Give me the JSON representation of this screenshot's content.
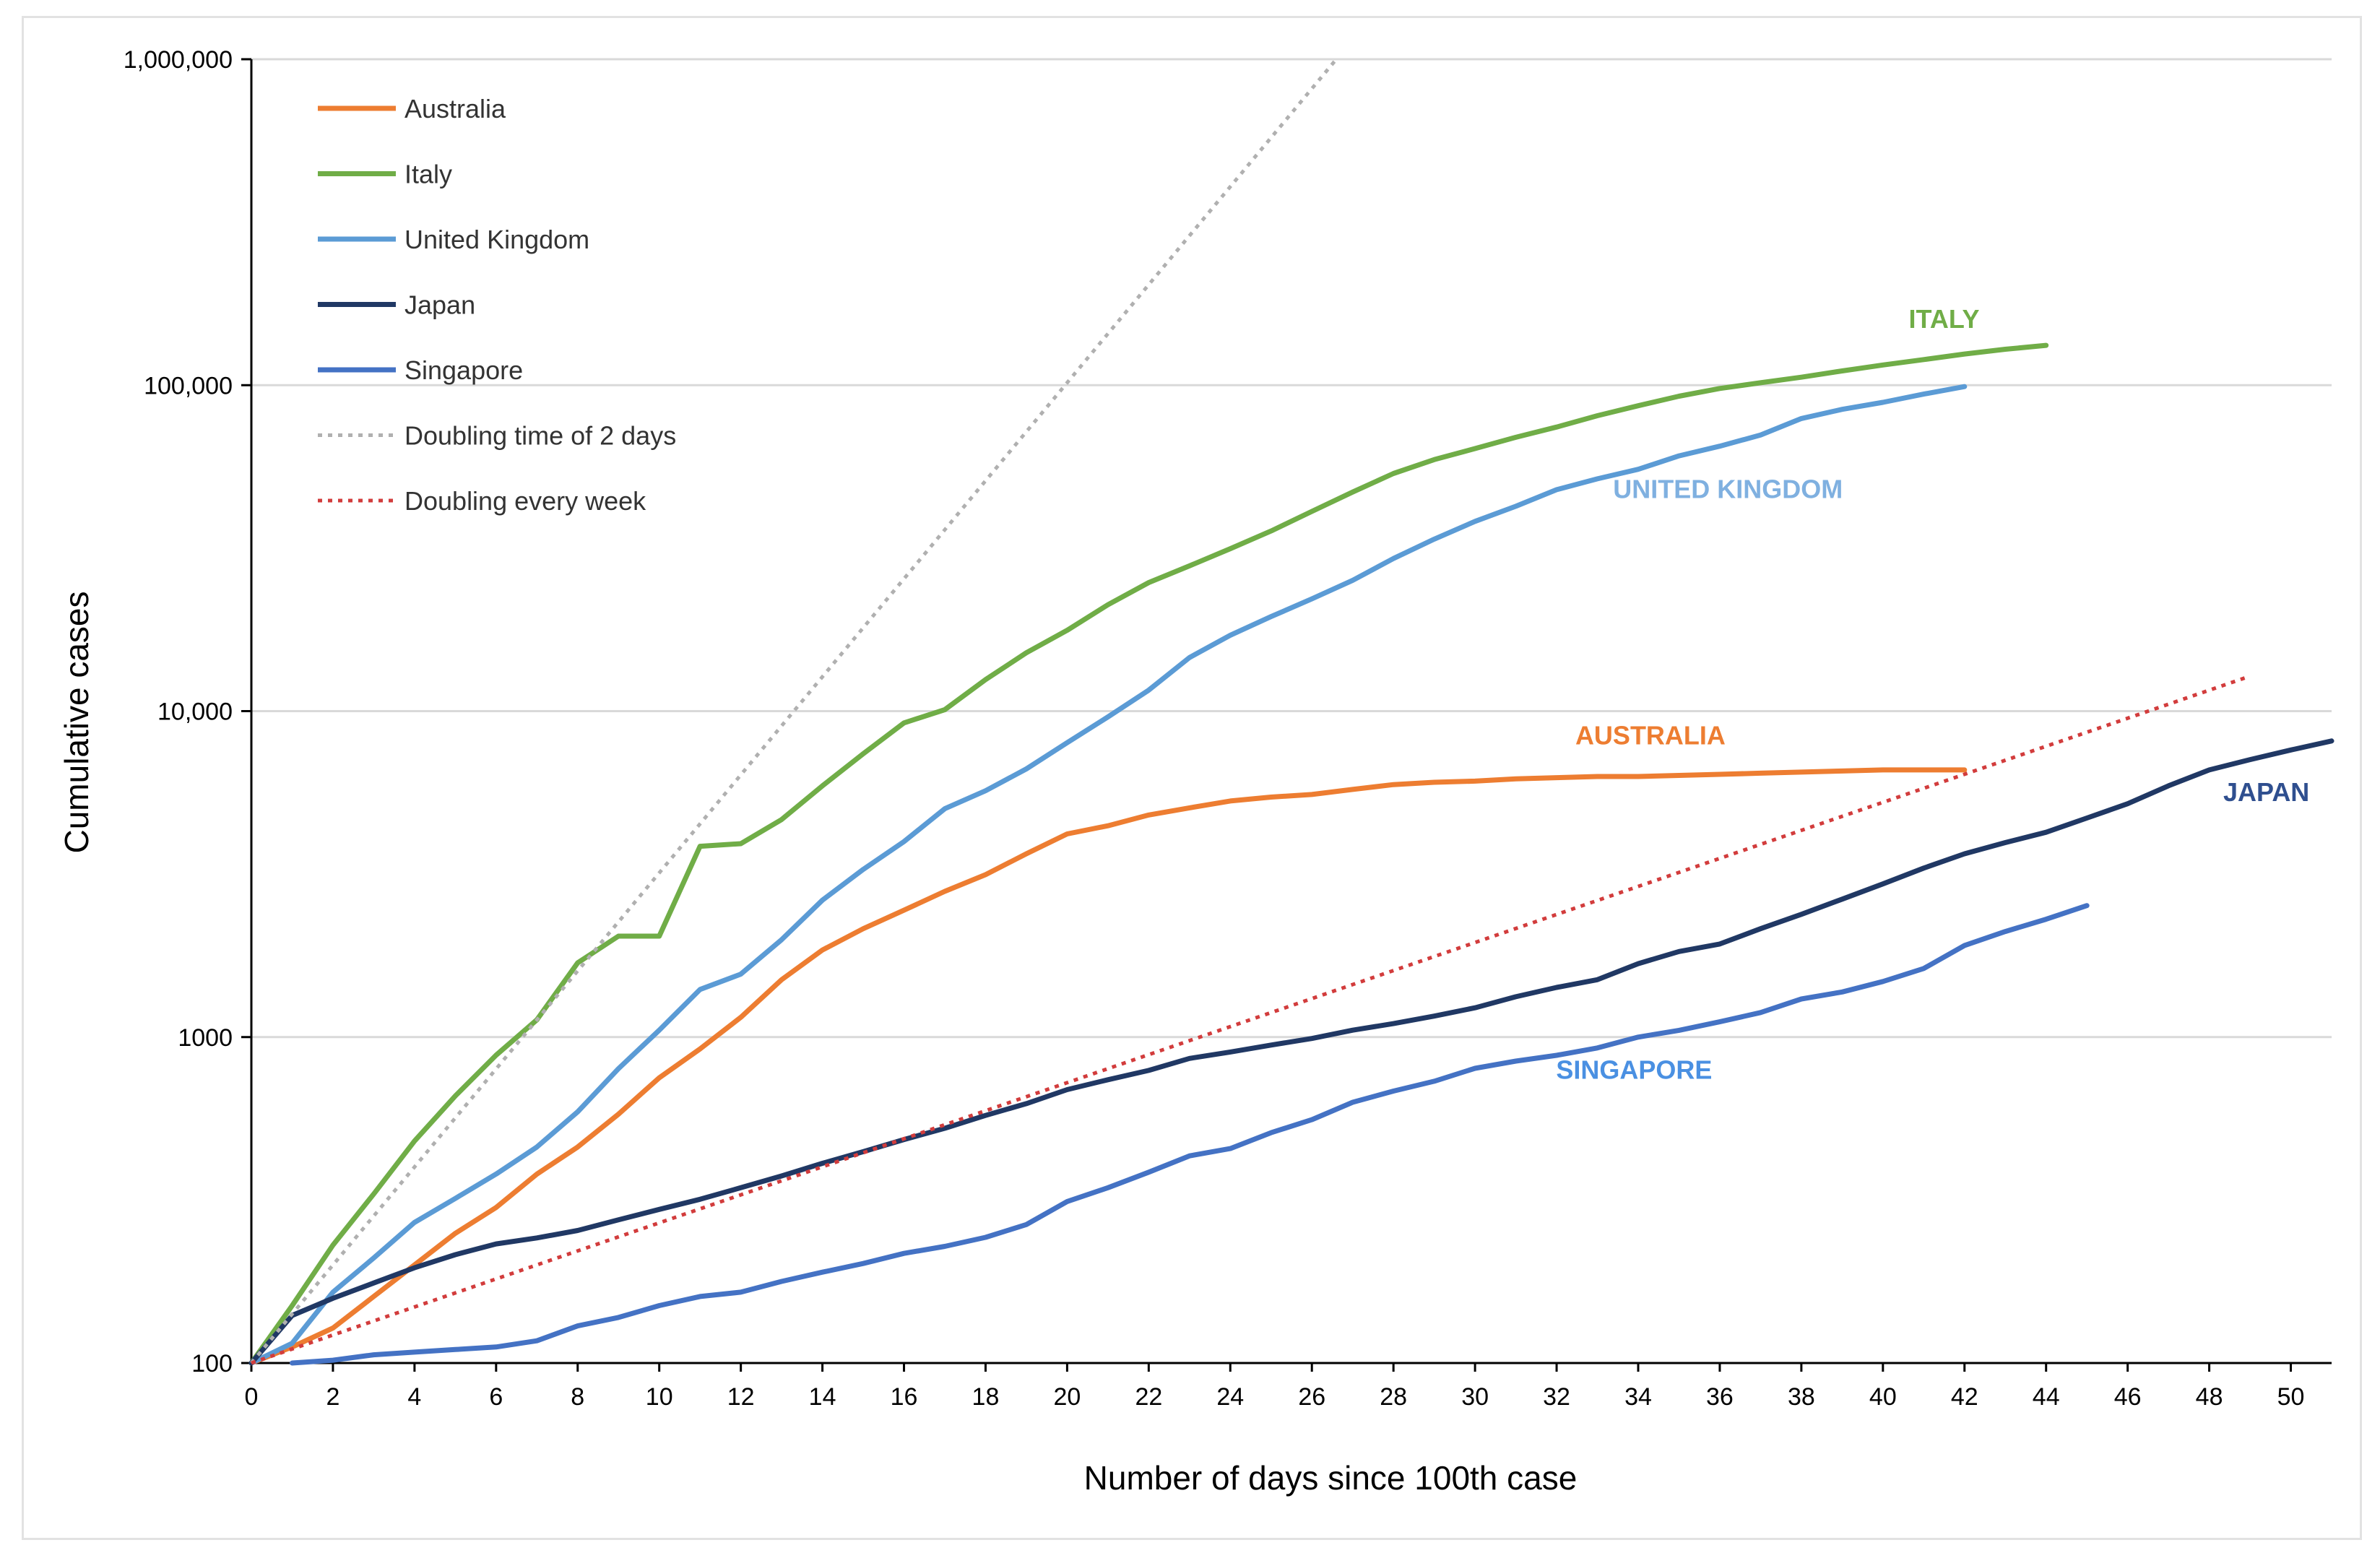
{
  "chart_data": {
    "type": "line",
    "title": "",
    "xlabel": "Number of days since 100th case",
    "ylabel": "Cumulative cases",
    "y_scale": "log",
    "ylim": [
      100,
      1000000
    ],
    "xlim": [
      0,
      51
    ],
    "x_ticks": [
      "0",
      "2",
      "4",
      "6",
      "8",
      "10",
      "12",
      "14",
      "16",
      "18",
      "20",
      "22",
      "24",
      "26",
      "28",
      "30",
      "32",
      "34",
      "36",
      "38",
      "40",
      "42",
      "44",
      "46",
      "48",
      "50"
    ],
    "y_tick_values": [
      100,
      1000,
      10000,
      100000,
      1000000
    ],
    "y_tick_labels": [
      "100",
      "1000",
      "10,000",
      "100,000",
      "1,000,000"
    ],
    "grid": "horizontal",
    "legend_position": "top-left",
    "series": [
      {
        "name": "Australia",
        "color": "#ED7D31",
        "style": "solid",
        "x": [
          0,
          1,
          2,
          3,
          4,
          5,
          6,
          7,
          8,
          9,
          10,
          11,
          12,
          13,
          14,
          15,
          16,
          17,
          18,
          19,
          20,
          21,
          22,
          23,
          24,
          25,
          26,
          27,
          28,
          29,
          30,
          31,
          32,
          33,
          34,
          35,
          36,
          37,
          38,
          39,
          40,
          41,
          42
        ],
        "y": [
          100,
          112,
          128,
          160,
          200,
          250,
          300,
          380,
          460,
          580,
          750,
          920,
          1150,
          1500,
          1850,
          2150,
          2450,
          2800,
          3150,
          3650,
          4200,
          4450,
          4800,
          5050,
          5300,
          5450,
          5550,
          5750,
          5950,
          6050,
          6100,
          6200,
          6250,
          6300,
          6300,
          6350,
          6400,
          6450,
          6500,
          6550,
          6600,
          6600,
          6600
        ]
      },
      {
        "name": "Italy",
        "color": "#70AD47",
        "style": "solid",
        "x": [
          0,
          1,
          2,
          3,
          4,
          5,
          6,
          7,
          8,
          9,
          10,
          11,
          12,
          13,
          14,
          15,
          16,
          17,
          18,
          19,
          20,
          21,
          22,
          23,
          24,
          25,
          26,
          27,
          28,
          29,
          30,
          31,
          32,
          33,
          34,
          35,
          36,
          37,
          38,
          39,
          40,
          41,
          42,
          43,
          44
        ],
        "y": [
          100,
          150,
          230,
          330,
          480,
          660,
          880,
          1130,
          1690,
          2040,
          2040,
          3850,
          3920,
          4650,
          5900,
          7400,
          9200,
          10100,
          12500,
          15100,
          17700,
          21200,
          24800,
          27900,
          31500,
          35700,
          41000,
          47000,
          53600,
          59100,
          63900,
          69200,
          74400,
          80600,
          86500,
          92500,
          97700,
          101700,
          105800,
          110600,
          115300,
          119800,
          124600,
          128900,
          132500
        ]
      },
      {
        "name": "United Kingdom",
        "color": "#5B9BD5",
        "style": "solid",
        "x": [
          0,
          1,
          2,
          3,
          4,
          5,
          6,
          7,
          8,
          9,
          10,
          11,
          12,
          13,
          14,
          15,
          16,
          17,
          18,
          19,
          20,
          21,
          22,
          23,
          24,
          25,
          26,
          27,
          28,
          29,
          30,
          31,
          32,
          33,
          34,
          35,
          36,
          37,
          38,
          39,
          40,
          41,
          42
        ],
        "y": [
          100,
          115,
          165,
          210,
          270,
          320,
          380,
          460,
          590,
          800,
          1050,
          1400,
          1560,
          1990,
          2630,
          3270,
          3980,
          5020,
          5700,
          6650,
          8000,
          9600,
          11600,
          14600,
          17100,
          19500,
          22100,
          25200,
          29400,
          33700,
          38200,
          42500,
          47800,
          51600,
          55200,
          60700,
          65000,
          70300,
          79000,
          84300,
          88600,
          93900,
          99000
        ]
      },
      {
        "name": "Japan",
        "color": "#203864",
        "style": "solid",
        "x": [
          0,
          1,
          2,
          3,
          4,
          5,
          6,
          7,
          8,
          9,
          10,
          11,
          12,
          13,
          14,
          15,
          16,
          17,
          18,
          19,
          20,
          21,
          22,
          23,
          24,
          25,
          26,
          27,
          28,
          29,
          30,
          31,
          32,
          33,
          34,
          35,
          36,
          37,
          38,
          39,
          40,
          41,
          42,
          43,
          44,
          45,
          46,
          47,
          48,
          49,
          50,
          51
        ],
        "y": [
          100,
          140,
          158,
          176,
          196,
          215,
          232,
          242,
          255,
          275,
          296,
          318,
          345,
          375,
          410,
          445,
          485,
          525,
          575,
          625,
          690,
          740,
          790,
          860,
          900,
          945,
          990,
          1050,
          1100,
          1160,
          1230,
          1330,
          1420,
          1500,
          1680,
          1830,
          1930,
          2150,
          2380,
          2650,
          2950,
          3300,
          3650,
          3950,
          4250,
          4700,
          5200,
          5900,
          6600,
          7100,
          7600,
          8100
        ]
      },
      {
        "name": "Singapore",
        "color": "#4472C4",
        "style": "solid",
        "x": [
          1,
          2,
          3,
          4,
          5,
          6,
          7,
          8,
          9,
          10,
          11,
          12,
          13,
          14,
          15,
          16,
          17,
          18,
          19,
          20,
          21,
          22,
          23,
          24,
          25,
          26,
          27,
          28,
          29,
          30,
          31,
          32,
          33,
          34,
          35,
          36,
          37,
          38,
          39,
          40,
          41,
          42,
          43,
          44,
          45
        ],
        "y": [
          100,
          102,
          106,
          108,
          110,
          112,
          117,
          130,
          138,
          150,
          160,
          165,
          178,
          190,
          202,
          217,
          228,
          243,
          266,
          313,
          345,
          385,
          432,
          455,
          509,
          558,
          631,
          683,
          732,
          802,
          844,
          879,
          926,
          1000,
          1049,
          1114,
          1189,
          1309,
          1375,
          1481,
          1623,
          1910,
          2108,
          2299,
          2532
        ]
      },
      {
        "name": "Doubling time of 2 days",
        "color": "#B0B0B0",
        "style": "dotted",
        "x": [
          0,
          26.6
        ],
        "y": [
          100,
          1000000
        ]
      },
      {
        "name": "Doubling every week",
        "color": "#D23C3C",
        "style": "dotted",
        "x": [
          0,
          49
        ],
        "y": [
          100,
          12800
        ]
      }
    ],
    "annotations": [
      {
        "text": "ITALY",
        "x": 41.5,
        "y": 150000,
        "color": "#70AD47"
      },
      {
        "text": "UNITED KINGDOM",
        "x": 36.2,
        "y": 45000,
        "color": "#7FB0E0"
      },
      {
        "text": "AUSTRALIA",
        "x": 34.3,
        "y": 7900,
        "color": "#ED7D31"
      },
      {
        "text": "JAPAN",
        "x": 49.4,
        "y": 5300,
        "color": "#2F4F8F"
      },
      {
        "text": "SINGAPORE",
        "x": 33.9,
        "y": 745,
        "color": "#4A90E2"
      }
    ]
  }
}
